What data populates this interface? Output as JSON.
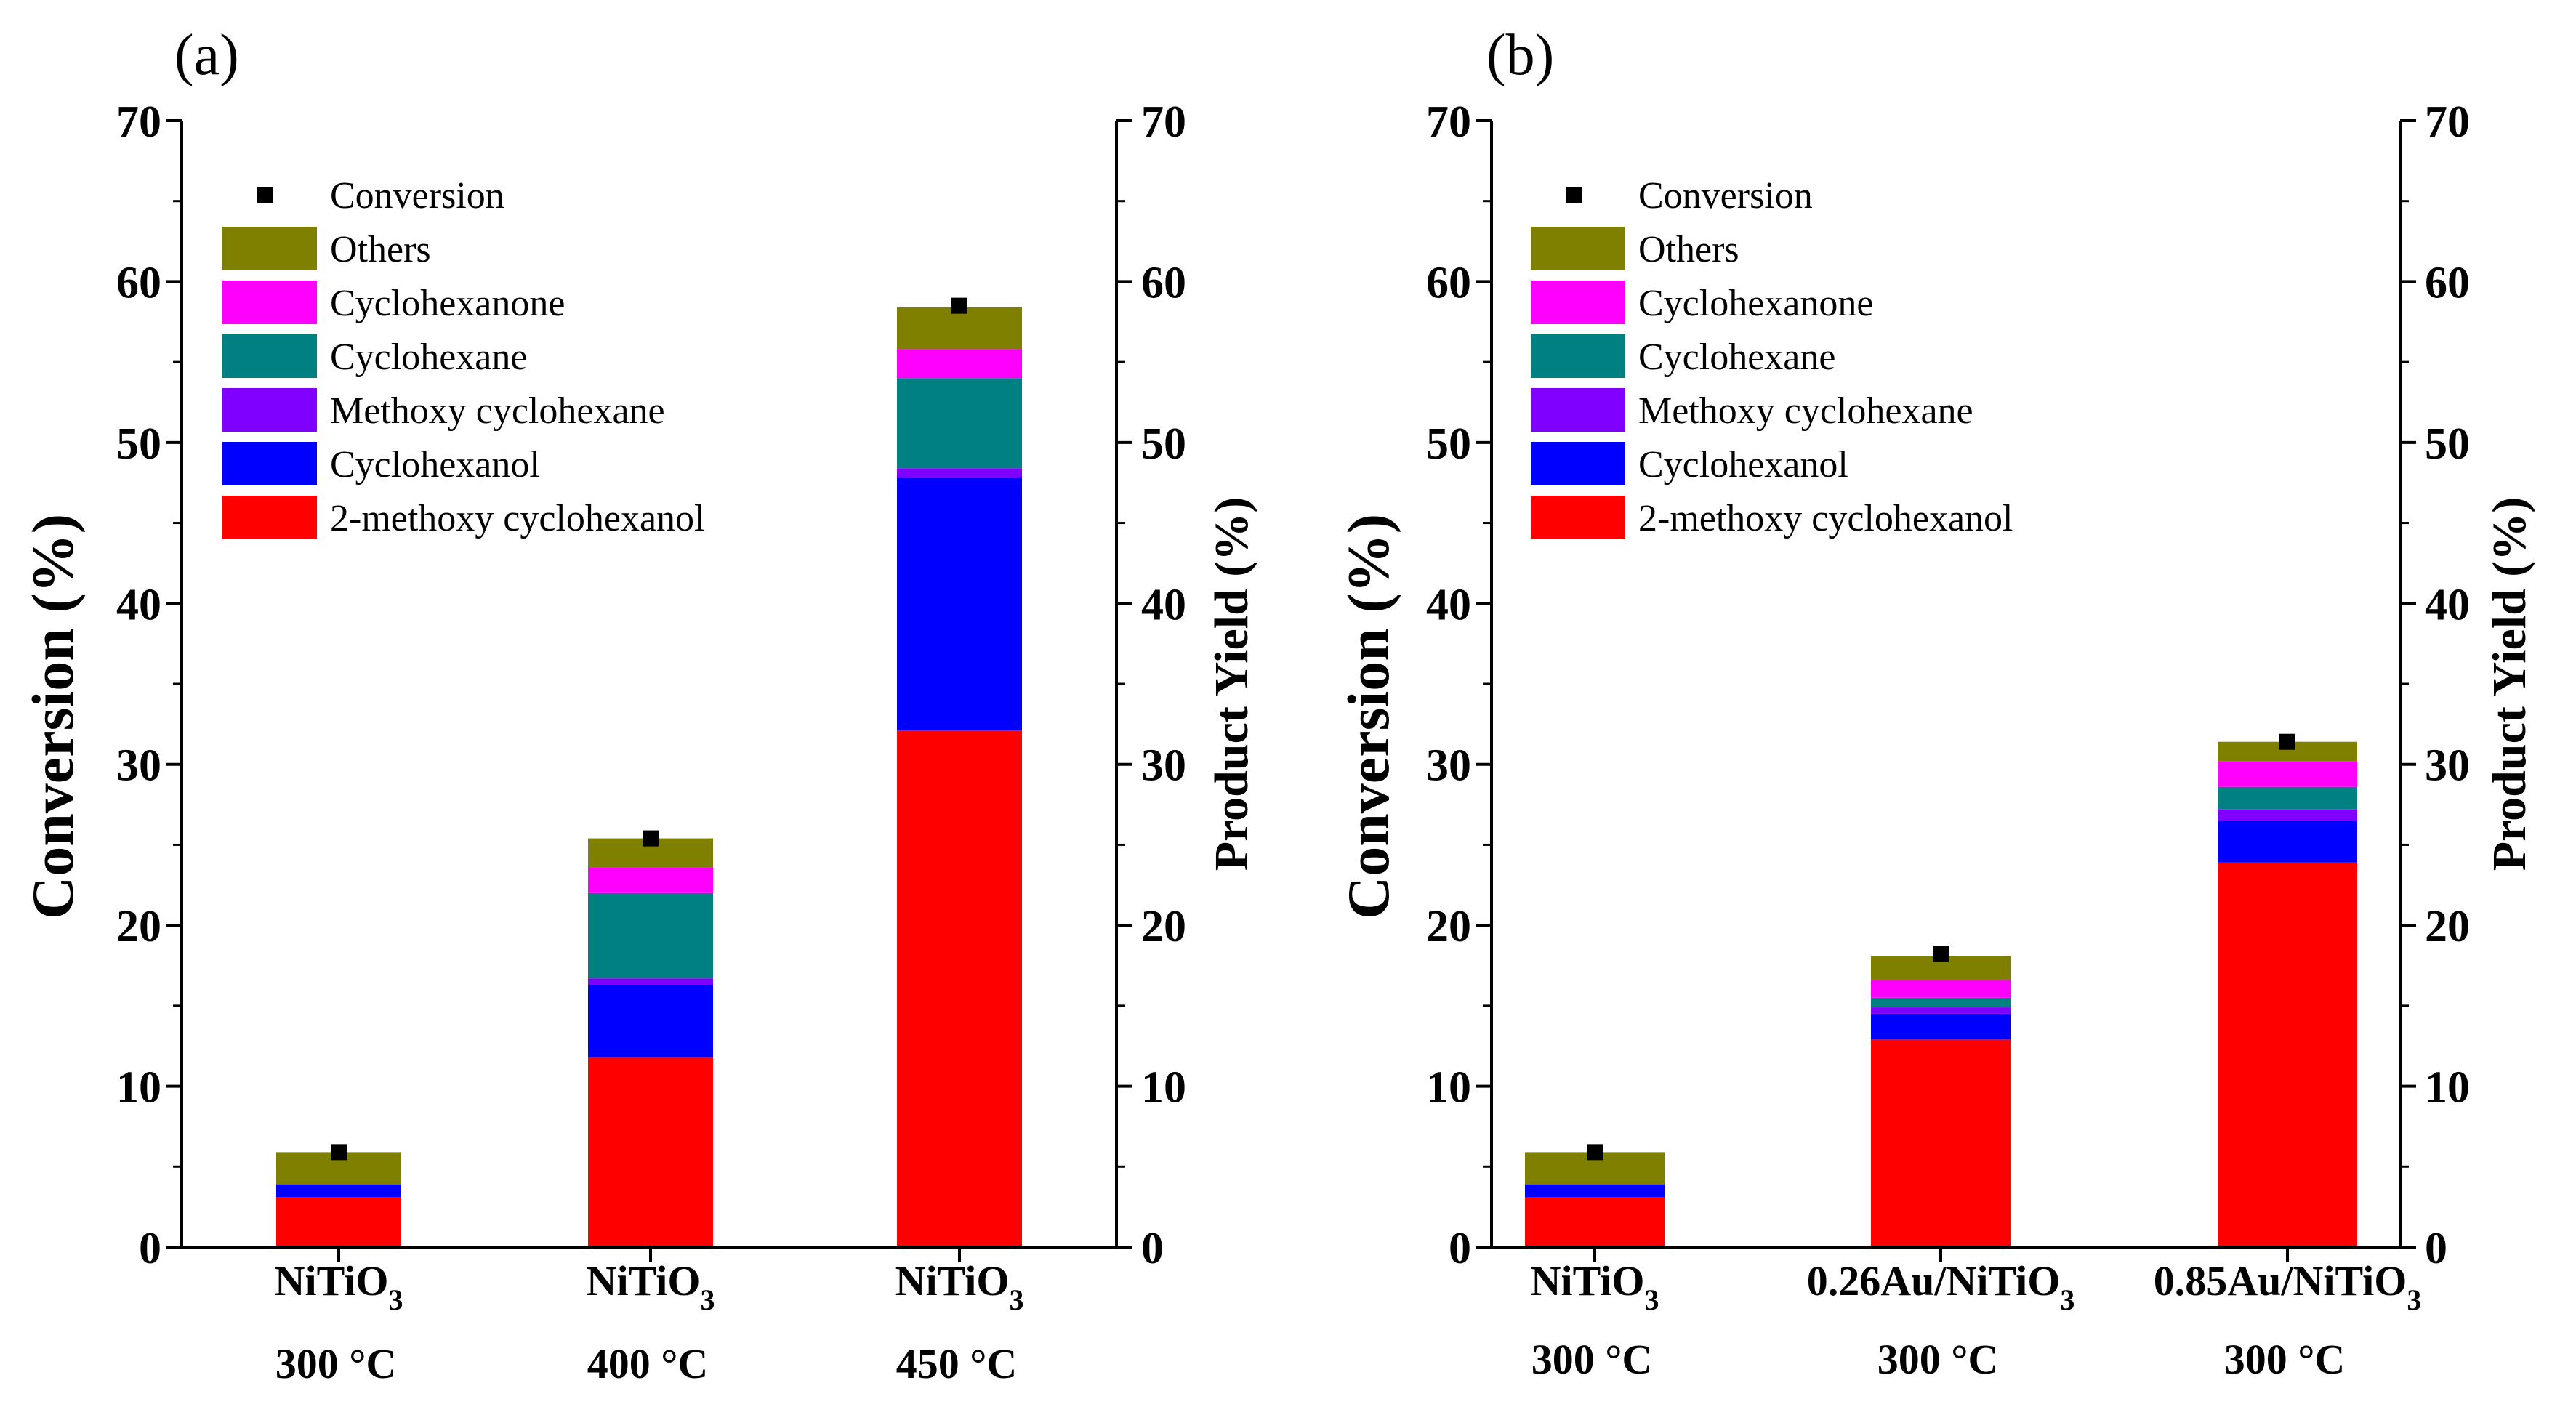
{
  "chart_data": [
    {
      "type": "bar",
      "stacked": true,
      "panel_label": "(a)",
      "ylabel": "Conversion (%)",
      "y2label": "Product Yield (%)",
      "ylim": [
        0,
        70
      ],
      "y2lim": [
        0,
        70
      ],
      "yticks": [
        "0",
        "10",
        "20",
        "30",
        "40",
        "50",
        "60",
        "70"
      ],
      "categories": [
        {
          "line1": "NiTiO",
          "sub": "3",
          "line2": "300 °C"
        },
        {
          "line1": "NiTiO",
          "sub": "3",
          "line2": "400 °C"
        },
        {
          "line1": "NiTiO",
          "sub": "3",
          "line2": "450 °C"
        }
      ],
      "series": [
        {
          "name": "2-methoxy cyclohexanol",
          "color": "#ff0000",
          "values": [
            3.1,
            11.8,
            32.1
          ]
        },
        {
          "name": "Cyclohexanol",
          "color": "#0000ff",
          "values": [
            0.8,
            4.5,
            15.7
          ]
        },
        {
          "name": "Methoxy cyclohexane",
          "color": "#8000ff",
          "values": [
            0.0,
            0.4,
            0.6
          ]
        },
        {
          "name": "Cyclohexane",
          "color": "#008080",
          "values": [
            0.0,
            5.3,
            5.6
          ]
        },
        {
          "name": "Cyclohexanone",
          "color": "#ff00ff",
          "values": [
            0.0,
            1.6,
            1.8
          ]
        },
        {
          "name": "Others",
          "color": "#808000",
          "values": [
            2.0,
            1.8,
            2.6
          ]
        }
      ],
      "conversion": {
        "name": "Conversion",
        "color": "#000000",
        "values": [
          5.9,
          25.4,
          58.5
        ]
      },
      "legend": "top-left"
    },
    {
      "type": "bar",
      "stacked": true,
      "panel_label": "(b)",
      "ylabel": "Conversion (%)",
      "y2label": "Product Yield (%)",
      "ylim": [
        0,
        70
      ],
      "y2lim": [
        0,
        70
      ],
      "yticks": [
        "0",
        "10",
        "20",
        "30",
        "40",
        "50",
        "60",
        "70"
      ],
      "categories": [
        {
          "line1": "NiTiO",
          "sub": "3",
          "line2": "300 °C"
        },
        {
          "line1": "0.26Au/NiTiO",
          "sub": "3",
          "line2": "300 °C"
        },
        {
          "line1": "0.85Au/NiTiO",
          "sub": "3",
          "line2": "300 °C"
        }
      ],
      "series": [
        {
          "name": "2-methoxy cyclohexanol",
          "color": "#ff0000",
          "values": [
            3.1,
            12.9,
            23.9
          ]
        },
        {
          "name": "Cyclohexanol",
          "color": "#0000ff",
          "values": [
            0.8,
            1.6,
            2.6
          ]
        },
        {
          "name": "Methoxy cyclohexane",
          "color": "#8000ff",
          "values": [
            0.0,
            0.4,
            0.7
          ]
        },
        {
          "name": "Cyclohexane",
          "color": "#008080",
          "values": [
            0.0,
            0.6,
            1.4
          ]
        },
        {
          "name": "Cyclohexanone",
          "color": "#ff00ff",
          "values": [
            0.0,
            1.1,
            1.6
          ]
        },
        {
          "name": "Others",
          "color": "#808000",
          "values": [
            2.0,
            1.5,
            1.2
          ]
        }
      ],
      "conversion": {
        "name": "Conversion",
        "color": "#000000",
        "values": [
          5.9,
          18.2,
          31.4
        ]
      },
      "legend": "top-left"
    }
  ]
}
